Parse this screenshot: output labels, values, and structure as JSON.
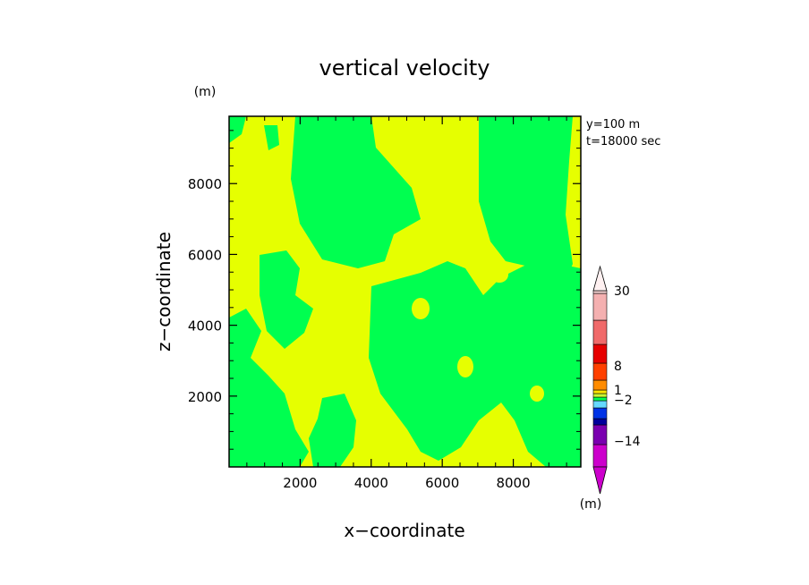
{
  "chart_data": {
    "type": "heatmap",
    "title": "vertical velocity",
    "xlabel": "x−coordinate",
    "ylabel": "z−coordinate",
    "y_unit": "(m)",
    "colorbar_unit": "(m)",
    "annotations": [
      "y=100 m",
      "t=18000 sec"
    ],
    "xlim": [
      0,
      9900
    ],
    "ylim": [
      0,
      9900
    ],
    "x_ticks": [
      2000,
      4000,
      6000,
      8000
    ],
    "y_ticks": [
      2000,
      4000,
      6000,
      8000
    ],
    "x_tick_labels": [
      "2000",
      "4000",
      "6000",
      "8000"
    ],
    "y_tick_labels": [
      "2000",
      "4000",
      "6000",
      "8000"
    ],
    "colorbar": {
      "tick_labels": [
        "30",
        "8",
        "1",
        "−2",
        "−14"
      ],
      "colors": [
        "#cc00cc",
        "#7a00b0",
        "#00009c",
        "#0033e6",
        "#66d9ff",
        "#00ff50",
        "#ccff33",
        "#ffe500",
        "#ff8c00",
        "#ff4000",
        "#e60000",
        "#f06a6a",
        "#f4b0b0",
        "#f7d2d2"
      ]
    },
    "field": {
      "description_colors": {
        "positive_weak": "#e6ff00",
        "negative_weak": "#00ff50"
      }
    }
  }
}
